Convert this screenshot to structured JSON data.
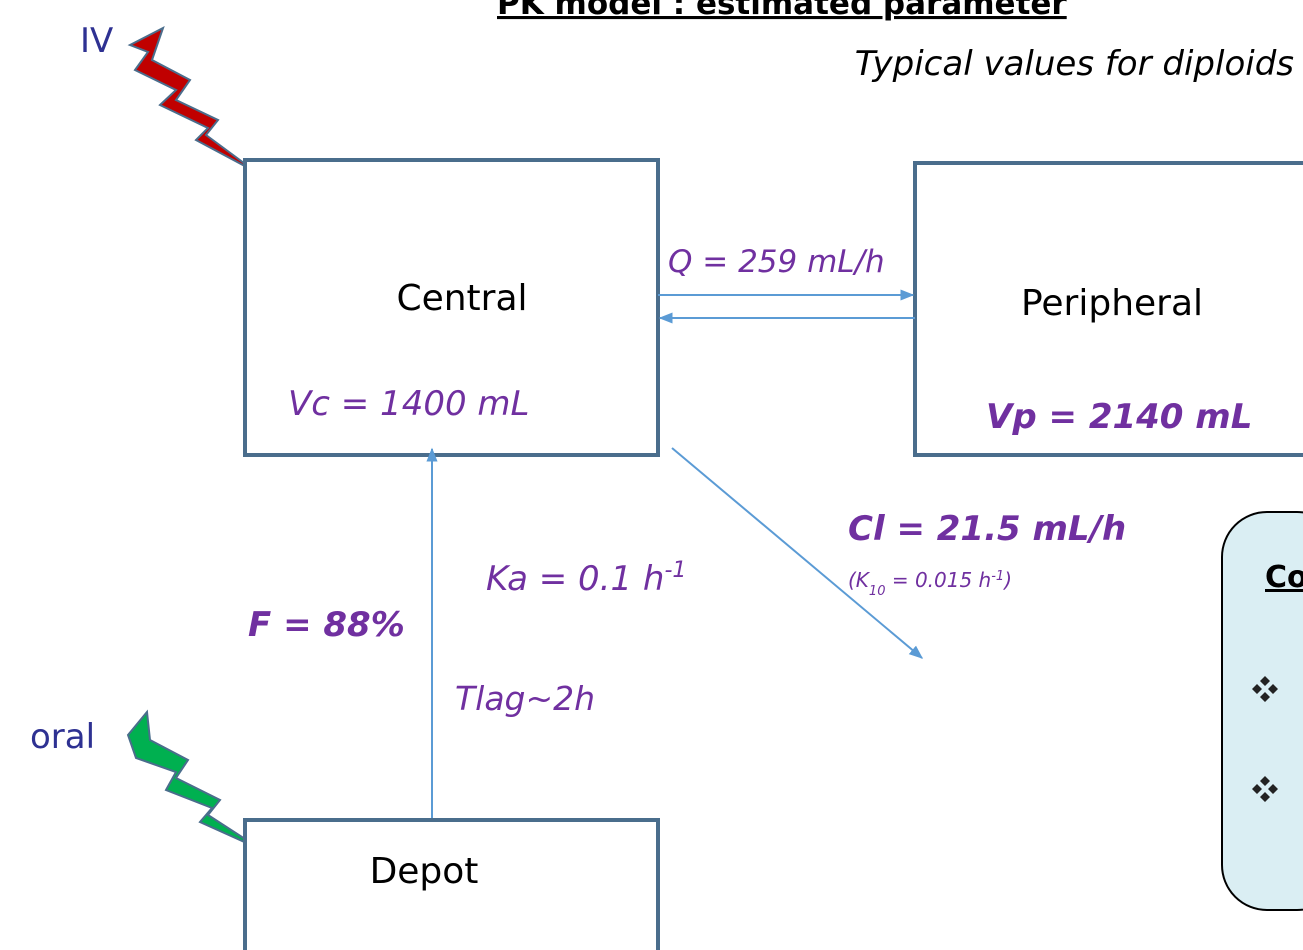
{
  "header": {
    "title": "PK model : estimated parameter",
    "subtitle": "Typical values for diploids"
  },
  "routes": {
    "iv": "IV",
    "oral": "oral"
  },
  "compartments": {
    "central": {
      "label": "Central",
      "volume": "Vc = 1400 mL"
    },
    "peripheral": {
      "label": "Peripheral",
      "volume": "Vp = 2140 mL"
    },
    "depot": {
      "label": "Depot"
    }
  },
  "parameters": {
    "q": "Q = 259 mL/h",
    "cl": "Cl = 21.5 mL/h",
    "k10": [
      "(K",
      "10",
      " = 0.015 h",
      "-1",
      ")"
    ],
    "ka": [
      "Ka = 0.1 h",
      "-1"
    ],
    "f": "F = 88%",
    "tlag": "Tlag~2h"
  },
  "side_box": {
    "heading": "Co"
  }
}
